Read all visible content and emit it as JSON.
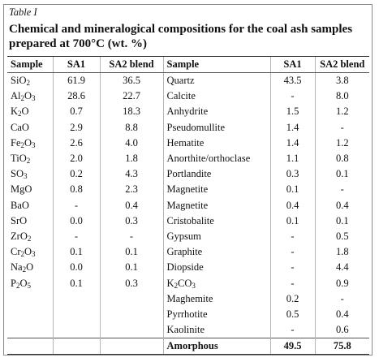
{
  "caption": "Table I",
  "title": "Chemical and mineralogical compositions for the coal ash samples prepared at 700°C (wt. %)",
  "headers": [
    "Sample",
    "SA1",
    "SA2 blend",
    "Sample",
    "SA1",
    "SA2 blend"
  ],
  "chemical": [
    {
      "name": "SiO₂",
      "sa1": "61.9",
      "sa2": "36.5"
    },
    {
      "name": "Al₂O₃",
      "sa1": "28.6",
      "sa2": "22.7"
    },
    {
      "name": "K₂O",
      "sa1": "0.7",
      "sa2": "18.3"
    },
    {
      "name": "CaO",
      "sa1": "2.9",
      "sa2": "8.8"
    },
    {
      "name": "Fe₂O₃",
      "sa1": "2.6",
      "sa2": "4.0"
    },
    {
      "name": "TiO₂",
      "sa1": "2.0",
      "sa2": "1.8"
    },
    {
      "name": "SO₃",
      "sa1": "0.2",
      "sa2": "4.3"
    },
    {
      "name": "MgO",
      "sa1": "0.8",
      "sa2": "2.3"
    },
    {
      "name": "BaO",
      "sa1": "-",
      "sa2": "0.4"
    },
    {
      "name": "SrO",
      "sa1": "0.0",
      "sa2": "0.3"
    },
    {
      "name": "ZrO₂",
      "sa1": "-",
      "sa2": "-"
    },
    {
      "name": "Cr₂O₃",
      "sa1": "0.1",
      "sa2": "0.1"
    },
    {
      "name": "Na₂O",
      "sa1": "0.0",
      "sa2": "0.1"
    },
    {
      "name": "P₂O₅",
      "sa1": "0.1",
      "sa2": "0.3"
    },
    {
      "name": "",
      "sa1": "",
      "sa2": ""
    },
    {
      "name": "",
      "sa1": "",
      "sa2": ""
    },
    {
      "name": "",
      "sa1": "",
      "sa2": ""
    }
  ],
  "mineral": [
    {
      "name": "Quartz",
      "sa1": "43.5",
      "sa2": "3.8"
    },
    {
      "name": "Calcite",
      "sa1": "-",
      "sa2": "8.0"
    },
    {
      "name": "Anhydrite",
      "sa1": "1.5",
      "sa2": "1.2"
    },
    {
      "name": "Pseudomullite",
      "sa1": "1.4",
      "sa2": "-"
    },
    {
      "name": "Hematite",
      "sa1": "1.4",
      "sa2": "1.2"
    },
    {
      "name": "Anorthite/orthoclase",
      "sa1": "1.1",
      "sa2": "0.8"
    },
    {
      "name": "Portlandite",
      "sa1": "0.3",
      "sa2": "0.1"
    },
    {
      "name": "Magnetite",
      "sa1": "0.1",
      "sa2": "-"
    },
    {
      "name": "Magnetite",
      "sa1": "0.4",
      "sa2": "0.4"
    },
    {
      "name": "Cristobalite",
      "sa1": "0.1",
      "sa2": "0.1"
    },
    {
      "name": "Gypsum",
      "sa1": "-",
      "sa2": "0.5"
    },
    {
      "name": "Graphite",
      "sa1": "-",
      "sa2": "1.8"
    },
    {
      "name": "Diopside",
      "sa1": "-",
      "sa2": "4.4"
    },
    {
      "name": "K₂CO₃",
      "sa1": "-",
      "sa2": "0.9"
    },
    {
      "name": "Maghemite",
      "sa1": "0.2",
      "sa2": "-"
    },
    {
      "name": "Pyrrhotite",
      "sa1": "0.5",
      "sa2": "0.4"
    },
    {
      "name": "Kaolinite",
      "sa1": "-",
      "sa2": "0.6"
    }
  ],
  "total": {
    "name": "Amorphous",
    "sa1": "49.5",
    "sa2": "75.8"
  }
}
